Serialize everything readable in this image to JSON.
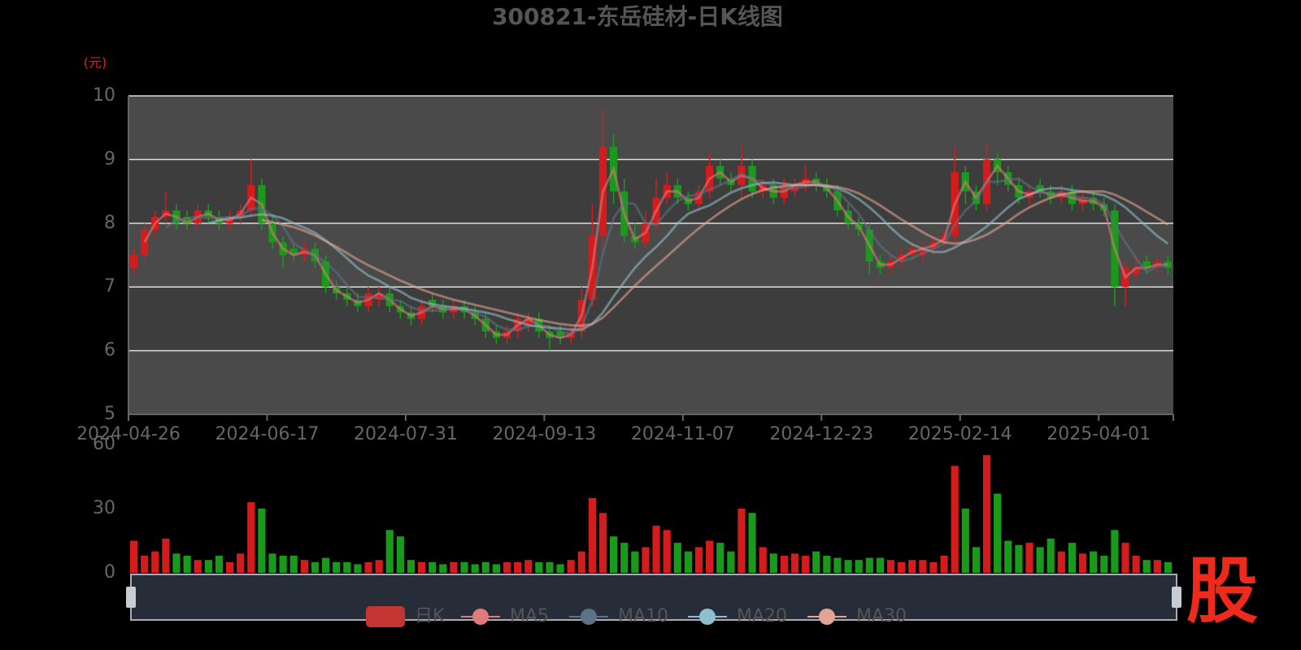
{
  "chart_data": [
    {
      "type": "candlestick",
      "title": "300821-东岳硅材-日K线图",
      "y_unit": "(元)",
      "categories": [
        "2024-04-26",
        null,
        null,
        null,
        null,
        null,
        null,
        null,
        null,
        null,
        null,
        null,
        null,
        "2024-06-17",
        null,
        null,
        null,
        null,
        null,
        null,
        null,
        null,
        null,
        null,
        null,
        null,
        "2024-07-31",
        null,
        null,
        null,
        null,
        null,
        null,
        null,
        null,
        null,
        null,
        null,
        null,
        "2024-09-13",
        null,
        null,
        null,
        null,
        null,
        null,
        null,
        null,
        null,
        null,
        null,
        null,
        "2024-11-07",
        null,
        null,
        null,
        null,
        null,
        null,
        null,
        null,
        null,
        null,
        null,
        null,
        "2024-12-23",
        null,
        null,
        null,
        null,
        null,
        null,
        null,
        null,
        null,
        null,
        null,
        null,
        "2025-02-14",
        null,
        null,
        null,
        null,
        null,
        null,
        null,
        null,
        null,
        null,
        null,
        null,
        "2025-04-01",
        null,
        null,
        null,
        null,
        null,
        null
      ],
      "ylim": [
        5,
        10
      ],
      "yticks": [
        5,
        6,
        7,
        8,
        9,
        10
      ],
      "grid": true,
      "split_area": true,
      "legend": "bottom",
      "up_color": "#d41c1c",
      "down_color": "#1a9a1a",
      "series": [
        {
          "name": "日K",
          "type": "candlestick",
          "color": "#c23531",
          "open": [
            7.3,
            7.5,
            7.9,
            8.1,
            8.2,
            8.1,
            8.0,
            8.2,
            8.1,
            8.0,
            8.1,
            8.2,
            8.6,
            8.0,
            7.7,
            7.6,
            7.5,
            7.6,
            7.4,
            7.0,
            6.9,
            6.8,
            6.7,
            6.8,
            6.9,
            6.7,
            6.6,
            6.5,
            6.8,
            6.7,
            6.6,
            6.7,
            6.6,
            6.5,
            6.3,
            6.2,
            6.3,
            6.4,
            6.5,
            6.3,
            6.3,
            6.2,
            6.3,
            6.8,
            7.8,
            9.2,
            8.5,
            7.8,
            7.7,
            8.0,
            8.4,
            8.6,
            8.4,
            8.3,
            8.5,
            8.9,
            8.7,
            8.6,
            8.9,
            8.5,
            8.6,
            8.4,
            8.5,
            8.6,
            8.7,
            8.6,
            8.5,
            8.2,
            8.0,
            7.9,
            7.4,
            7.3,
            7.4,
            7.5,
            7.5,
            7.6,
            7.7,
            7.8,
            8.8,
            8.5,
            8.3,
            9.0,
            8.8,
            8.6,
            8.4,
            8.6,
            8.5,
            8.4,
            8.5,
            8.3,
            8.4,
            8.3,
            8.2,
            7.0,
            7.2,
            7.4,
            7.3,
            7.4
          ],
          "close": [
            7.5,
            7.9,
            8.1,
            8.2,
            8.0,
            8.0,
            8.2,
            8.1,
            8.0,
            8.1,
            8.2,
            8.6,
            8.0,
            7.7,
            7.5,
            7.5,
            7.6,
            7.4,
            7.0,
            6.9,
            6.8,
            6.7,
            6.9,
            6.9,
            6.7,
            6.6,
            6.5,
            6.7,
            6.7,
            6.6,
            6.7,
            6.6,
            6.5,
            6.3,
            6.2,
            6.3,
            6.5,
            6.5,
            6.3,
            6.2,
            6.2,
            6.3,
            6.8,
            7.8,
            9.2,
            8.5,
            7.8,
            7.7,
            8.0,
            8.4,
            8.6,
            8.4,
            8.3,
            8.5,
            8.9,
            8.7,
            8.6,
            8.9,
            8.5,
            8.6,
            8.4,
            8.6,
            8.6,
            8.7,
            8.6,
            8.5,
            8.2,
            8.0,
            7.9,
            7.4,
            7.3,
            7.4,
            7.5,
            7.6,
            7.6,
            7.7,
            7.8,
            8.8,
            8.5,
            8.3,
            9.0,
            8.8,
            8.6,
            8.4,
            8.5,
            8.5,
            8.4,
            8.5,
            8.3,
            8.4,
            8.3,
            8.2,
            7.0,
            7.3,
            7.3,
            7.3,
            7.4,
            7.3
          ],
          "low": [
            7.2,
            7.4,
            7.8,
            8.0,
            7.9,
            7.9,
            7.9,
            8.0,
            7.9,
            7.9,
            8.0,
            8.1,
            7.9,
            7.6,
            7.3,
            7.4,
            7.4,
            7.3,
            6.9,
            6.8,
            6.7,
            6.6,
            6.6,
            6.7,
            6.6,
            6.5,
            6.4,
            6.4,
            6.6,
            6.5,
            6.5,
            6.5,
            6.4,
            6.2,
            6.1,
            6.1,
            6.2,
            6.3,
            6.2,
            6.0,
            6.1,
            6.1,
            6.2,
            6.7,
            7.6,
            8.3,
            7.7,
            7.6,
            7.6,
            7.9,
            8.3,
            8.3,
            8.2,
            8.2,
            8.4,
            8.6,
            8.5,
            8.4,
            8.4,
            8.4,
            8.3,
            8.3,
            8.4,
            8.5,
            8.5,
            8.4,
            8.1,
            7.9,
            7.8,
            7.2,
            7.2,
            7.2,
            7.3,
            7.4,
            7.4,
            7.5,
            7.6,
            7.7,
            8.3,
            8.2,
            8.2,
            8.6,
            8.5,
            8.3,
            8.3,
            8.4,
            8.3,
            8.3,
            8.2,
            8.2,
            8.2,
            8.1,
            6.7,
            6.7,
            7.1,
            7.2,
            7.2,
            7.2
          ],
          "high": [
            7.6,
            8.0,
            8.2,
            8.5,
            8.3,
            8.2,
            8.3,
            8.3,
            8.2,
            8.2,
            8.3,
            9.0,
            8.7,
            8.1,
            7.8,
            7.7,
            7.7,
            7.7,
            7.5,
            7.1,
            7.0,
            6.9,
            7.0,
            7.0,
            7.0,
            6.8,
            6.7,
            6.8,
            6.9,
            6.8,
            6.8,
            6.8,
            6.7,
            6.6,
            6.4,
            6.4,
            6.6,
            6.6,
            6.6,
            6.4,
            6.4,
            6.4,
            7.0,
            8.3,
            9.8,
            9.4,
            8.7,
            8.0,
            8.2,
            8.7,
            8.8,
            8.7,
            8.5,
            8.6,
            9.1,
            9.0,
            8.8,
            9.2,
            9.0,
            8.7,
            8.7,
            8.7,
            8.7,
            8.9,
            8.8,
            8.7,
            8.6,
            8.3,
            8.1,
            8.0,
            7.5,
            7.5,
            7.6,
            7.7,
            7.7,
            7.8,
            7.9,
            9.2,
            8.9,
            8.6,
            9.3,
            9.1,
            8.9,
            8.7,
            8.6,
            8.7,
            8.6,
            8.6,
            8.6,
            8.5,
            8.5,
            8.4,
            8.3,
            7.4,
            7.5,
            7.5,
            7.5,
            7.5
          ]
        },
        {
          "name": "MA5",
          "type": "line",
          "color": "#e07b7b",
          "values": [
            null,
            7.7,
            8.0,
            8.15,
            8.1,
            8.0,
            8.1,
            8.15,
            8.05,
            8.05,
            8.15,
            8.4,
            8.3,
            7.85,
            7.6,
            7.5,
            7.55,
            7.5,
            7.2,
            6.95,
            6.85,
            6.75,
            6.8,
            6.9,
            6.8,
            6.65,
            6.55,
            6.6,
            6.7,
            6.65,
            6.65,
            6.65,
            6.55,
            6.4,
            6.25,
            6.25,
            6.4,
            6.5,
            6.4,
            6.25,
            6.2,
            6.25,
            6.55,
            7.3,
            8.5,
            8.85,
            8.15,
            7.75,
            7.85,
            8.2,
            8.5,
            8.5,
            8.35,
            8.4,
            8.7,
            8.8,
            8.65,
            8.75,
            8.7,
            8.55,
            8.5,
            8.5,
            8.6,
            8.65,
            8.65,
            8.55,
            8.35,
            8.1,
            7.95,
            7.65,
            7.35,
            7.35,
            7.45,
            7.55,
            7.6,
            7.65,
            7.75,
            8.3,
            8.65,
            8.4,
            8.65,
            8.9,
            8.7,
            8.5,
            8.45,
            8.5,
            8.45,
            8.45,
            8.4,
            8.35,
            8.35,
            8.25,
            7.6,
            7.15,
            7.3,
            7.3,
            7.35,
            7.35
          ]
        },
        {
          "name": "MA10",
          "type": "line",
          "color": "#5b7385",
          "values": [
            null,
            null,
            null,
            7.93,
            8.05,
            8.08,
            8.1,
            8.08,
            8.08,
            8.1,
            8.1,
            8.23,
            8.23,
            8.13,
            7.95,
            7.68,
            7.58,
            7.5,
            7.38,
            7.23,
            7.03,
            6.85,
            6.83,
            6.83,
            6.8,
            6.78,
            6.68,
            6.63,
            6.63,
            6.63,
            6.68,
            6.65,
            6.6,
            6.53,
            6.4,
            6.33,
            6.33,
            6.38,
            6.4,
            6.38,
            6.3,
            6.25,
            6.38,
            6.78,
            7.53,
            8.08,
            8.33,
            8.3,
            8.0,
            7.98,
            8.18,
            8.35,
            8.43,
            8.45,
            8.53,
            8.6,
            8.68,
            8.78,
            8.68,
            8.65,
            8.6,
            8.53,
            8.55,
            8.58,
            8.63,
            8.6,
            8.5,
            8.33,
            8.15,
            7.88,
            7.65,
            7.5,
            7.4,
            7.45,
            7.53,
            7.6,
            7.68,
            7.98,
            8.2,
            8.35,
            8.65,
            8.65,
            8.68,
            8.7,
            8.58,
            8.5,
            8.45,
            8.48,
            8.43,
            8.4,
            8.38,
            8.3,
            7.98,
            7.7,
            7.45,
            7.23,
            7.33,
            7.33
          ]
        },
        {
          "name": "MA20",
          "type": "line",
          "color": "#8fbfcb",
          "values": [
            null,
            null,
            null,
            null,
            null,
            null,
            null,
            8.0,
            8.05,
            8.08,
            8.09,
            8.12,
            8.14,
            8.12,
            8.08,
            8.0,
            7.93,
            7.85,
            7.73,
            7.6,
            7.45,
            7.3,
            7.18,
            7.1,
            7.0,
            6.93,
            6.83,
            6.77,
            6.73,
            6.7,
            6.68,
            6.66,
            6.63,
            6.6,
            6.56,
            6.5,
            6.45,
            6.4,
            6.38,
            6.36,
            6.35,
            6.33,
            6.33,
            6.42,
            6.6,
            6.85,
            7.08,
            7.3,
            7.48,
            7.63,
            7.8,
            8.0,
            8.15,
            8.22,
            8.28,
            8.38,
            8.48,
            8.55,
            8.6,
            8.63,
            8.64,
            8.62,
            8.6,
            8.6,
            8.6,
            8.58,
            8.55,
            8.48,
            8.38,
            8.25,
            8.1,
            7.93,
            7.78,
            7.67,
            7.6,
            7.55,
            7.55,
            7.62,
            7.72,
            7.83,
            7.95,
            8.1,
            8.25,
            8.38,
            8.45,
            8.52,
            8.55,
            8.55,
            8.52,
            8.5,
            8.47,
            8.44,
            8.36,
            8.25,
            8.1,
            7.95,
            7.8,
            7.68
          ]
        },
        {
          "name": "MA30",
          "type": "line",
          "color": "#e3a593",
          "values": [
            null,
            null,
            null,
            null,
            null,
            null,
            null,
            null,
            null,
            null,
            null,
            null,
            8.05,
            8.02,
            7.98,
            7.94,
            7.88,
            7.81,
            7.72,
            7.63,
            7.53,
            7.43,
            7.34,
            7.26,
            7.18,
            7.1,
            7.03,
            6.96,
            6.9,
            6.85,
            6.8,
            6.76,
            6.72,
            6.68,
            6.64,
            6.6,
            6.56,
            6.52,
            6.48,
            6.45,
            6.42,
            6.4,
            6.39,
            6.42,
            6.52,
            6.68,
            6.85,
            7.02,
            7.18,
            7.33,
            7.48,
            7.63,
            7.78,
            7.92,
            8.05,
            8.17,
            8.28,
            8.38,
            8.46,
            8.52,
            8.56,
            8.58,
            8.6,
            8.6,
            8.6,
            8.59,
            8.57,
            8.53,
            8.47,
            8.38,
            8.28,
            8.17,
            8.06,
            7.96,
            7.86,
            7.77,
            7.7,
            7.68,
            7.7,
            7.75,
            7.82,
            7.92,
            8.03,
            8.15,
            8.25,
            8.33,
            8.4,
            8.45,
            8.48,
            8.5,
            8.5,
            8.5,
            8.45,
            8.37,
            8.28,
            8.18,
            8.08,
            7.98
          ]
        }
      ]
    },
    {
      "type": "bar",
      "ylim": [
        0,
        60
      ],
      "yticks": [
        0,
        30,
        60
      ],
      "values": [
        15,
        8,
        10,
        16,
        9,
        8,
        6,
        6,
        8,
        5,
        9,
        33,
        30,
        9,
        8,
        8,
        6,
        5,
        7,
        5,
        5,
        4,
        5,
        6,
        20,
        17,
        6,
        5,
        5,
        4,
        5,
        5,
        4,
        5,
        4,
        5,
        5,
        6,
        5,
        5,
        4,
        6,
        10,
        35,
        28,
        17,
        14,
        10,
        12,
        22,
        20,
        14,
        10,
        12,
        15,
        14,
        10,
        30,
        28,
        12,
        9,
        8,
        9,
        8,
        10,
        8,
        7,
        6,
        6,
        7,
        7,
        6,
        5,
        6,
        6,
        5,
        8,
        50,
        30,
        12,
        55,
        37,
        15,
        13,
        14,
        12,
        16,
        10,
        14,
        9,
        10,
        8,
        20,
        14,
        8,
        6,
        6,
        5
      ]
    }
  ],
  "logo": "股"
}
